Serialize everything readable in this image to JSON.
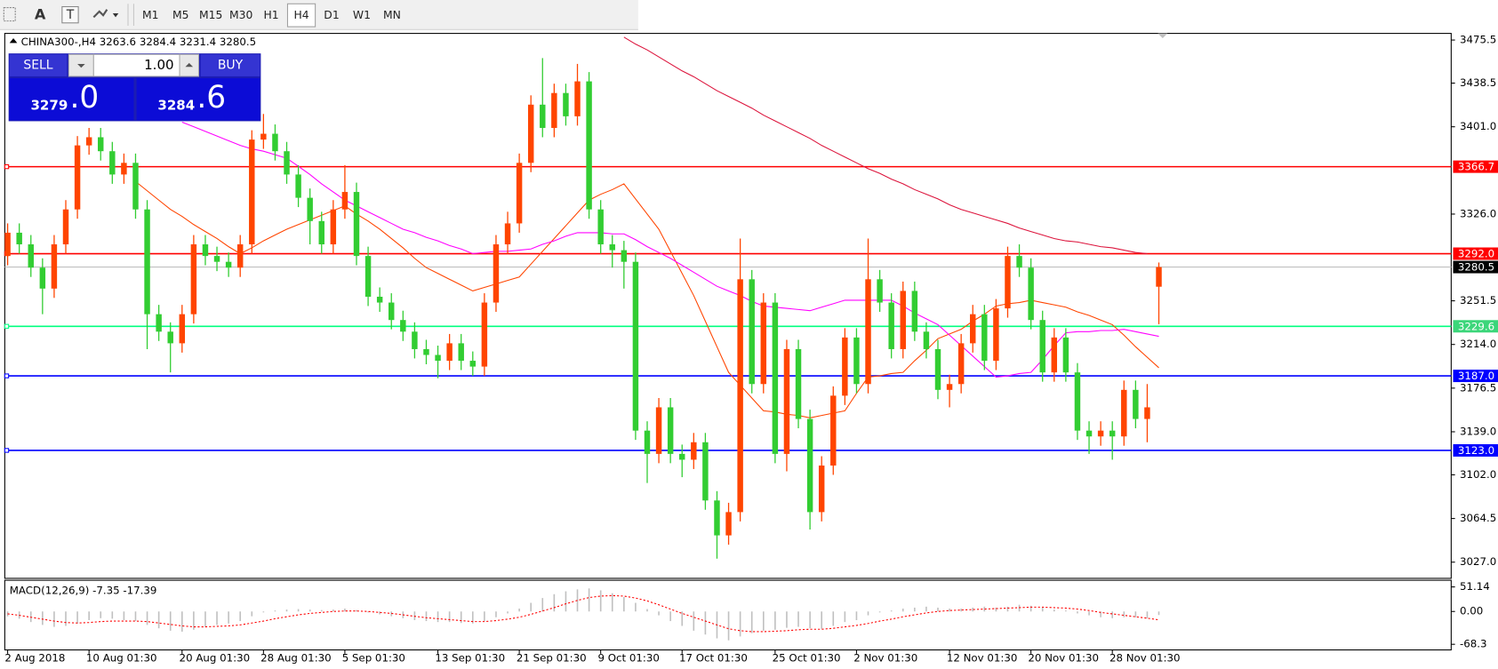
{
  "toolbar": {
    "text_tool": "A",
    "label_tool": "T",
    "timeframes": [
      "M1",
      "M5",
      "M15",
      "M30",
      "H1",
      "H4",
      "D1",
      "W1",
      "MN"
    ],
    "selected": "H4"
  },
  "trade_panel": {
    "sell": "SELL",
    "lot": "1.00",
    "buy": "BUY",
    "bid_small": "3279",
    "bid_big": ".0",
    "ask_small": "3284",
    "ask_big": ".6"
  },
  "chart_data": {
    "type": "candlestick",
    "title": "CHINA300-,H4  3263.6 3284.4 3231.4 3280.5",
    "categories": [
      "2 Aug 2018",
      null,
      null,
      null,
      null,
      null,
      null,
      "10 Aug 01:30",
      null,
      null,
      null,
      null,
      null,
      null,
      null,
      "20 Aug 01:30",
      null,
      null,
      null,
      null,
      null,
      null,
      "28 Aug 01:30",
      null,
      null,
      null,
      null,
      null,
      null,
      "5 Sep 01:30",
      null,
      null,
      null,
      null,
      null,
      null,
      null,
      "13 Sep 01:30",
      null,
      null,
      null,
      null,
      null,
      null,
      "21 Sep 01:30",
      null,
      null,
      null,
      null,
      null,
      null,
      "9 Oct 01:30",
      null,
      null,
      null,
      null,
      null,
      null,
      "17 Oct 01:30",
      null,
      null,
      null,
      null,
      null,
      null,
      null,
      "25 Oct 01:30",
      null,
      null,
      null,
      null,
      null,
      null,
      "2 Nov 01:30",
      null,
      null,
      null,
      null,
      null,
      null,
      null,
      "12 Nov 01:30",
      null,
      null,
      null,
      null,
      null,
      null,
      "20 Nov 01:30",
      null,
      null,
      null,
      null,
      null,
      null,
      "28 Nov 01:30",
      null,
      null,
      null,
      null
    ],
    "open": [
      3290,
      3310,
      3300,
      3280,
      3262,
      3300,
      3330,
      3385,
      3392,
      3380,
      3360,
      3370,
      3330,
      3240,
      3225,
      3215,
      3240,
      3300,
      3290,
      3285,
      3280,
      3300,
      3390,
      3395,
      3380,
      3360,
      3340,
      3320,
      3300,
      3330,
      3345,
      3290,
      3255,
      3250,
      3235,
      3225,
      3210,
      3205,
      3200,
      3215,
      3200,
      3195,
      3250,
      3300,
      3318,
      3370,
      3420,
      3400,
      3430,
      3410,
      3440,
      3330,
      3300,
      3295,
      3285,
      3140,
      3120,
      3160,
      3120,
      3115,
      3130,
      3080,
      3050,
      3070,
      3270,
      3180,
      3250,
      3120,
      3210,
      3150,
      3070,
      3110,
      3170,
      3220,
      3180,
      3270,
      3250,
      3210,
      3260,
      3225,
      3210,
      3175,
      3180,
      3215,
      3240,
      3200,
      3245,
      3290,
      3280,
      3235,
      3190,
      3220,
      3190,
      3140,
      3135,
      3140,
      3135,
      3175,
      3150,
      3263.6
    ],
    "high": [
      3318,
      3318,
      3308,
      3288,
      3308,
      3338,
      3393,
      3400,
      3400,
      3388,
      3378,
      3378,
      3338,
      3248,
      3233,
      3248,
      3308,
      3308,
      3298,
      3293,
      3308,
      3398,
      3412,
      3403,
      3388,
      3368,
      3348,
      3328,
      3338,
      3368,
      3353,
      3298,
      3263,
      3258,
      3243,
      3233,
      3218,
      3213,
      3223,
      3223,
      3208,
      3258,
      3308,
      3328,
      3378,
      3428,
      3460,
      3438,
      3438,
      3455,
      3448,
      3338,
      3308,
      3303,
      3293,
      3148,
      3168,
      3168,
      3128,
      3138,
      3138,
      3088,
      3078,
      3305,
      3278,
      3258,
      3258,
      3218,
      3218,
      3158,
      3118,
      3178,
      3228,
      3228,
      3305,
      3278,
      3258,
      3268,
      3268,
      3233,
      3218,
      3188,
      3223,
      3248,
      3248,
      3253,
      3298,
      3300,
      3288,
      3243,
      3228,
      3228,
      3198,
      3148,
      3148,
      3148,
      3183,
      3183,
      3180,
      3284.4
    ],
    "low": [
      3282,
      3292,
      3272,
      3240,
      3254,
      3292,
      3322,
      3377,
      3372,
      3352,
      3352,
      3322,
      3210,
      3217,
      3190,
      3207,
      3232,
      3282,
      3277,
      3272,
      3272,
      3292,
      3382,
      3372,
      3352,
      3332,
      3300,
      3292,
      3292,
      3322,
      3282,
      3247,
      3242,
      3227,
      3217,
      3202,
      3197,
      3185,
      3192,
      3192,
      3187,
      3187,
      3242,
      3292,
      3310,
      3362,
      3392,
      3392,
      3402,
      3402,
      3322,
      3292,
      3280,
      3262,
      3132,
      3095,
      3112,
      3112,
      3100,
      3107,
      3072,
      3030,
      3042,
      3062,
      3172,
      3172,
      3112,
      3105,
      3142,
      3055,
      3062,
      3102,
      3162,
      3172,
      3172,
      3242,
      3202,
      3202,
      3217,
      3202,
      3167,
      3160,
      3172,
      3207,
      3192,
      3192,
      3237,
      3272,
      3227,
      3182,
      3182,
      3182,
      3132,
      3120,
      3127,
      3115,
      3127,
      3142,
      3130,
      3231.4
    ],
    "close": [
      3310,
      3300,
      3280,
      3262,
      3300,
      3330,
      3385,
      3392,
      3380,
      3360,
      3370,
      3330,
      3240,
      3225,
      3215,
      3240,
      3300,
      3290,
      3285,
      3280,
      3300,
      3390,
      3395,
      3380,
      3360,
      3340,
      3320,
      3300,
      3330,
      3345,
      3290,
      3255,
      3250,
      3235,
      3225,
      3210,
      3205,
      3200,
      3215,
      3200,
      3195,
      3250,
      3300,
      3318,
      3370,
      3420,
      3400,
      3430,
      3410,
      3440,
      3330,
      3300,
      3295,
      3285,
      3140,
      3120,
      3160,
      3120,
      3115,
      3130,
      3080,
      3050,
      3070,
      3270,
      3180,
      3250,
      3120,
      3210,
      3150,
      3070,
      3110,
      3170,
      3220,
      3180,
      3270,
      3250,
      3210,
      3260,
      3225,
      3210,
      3175,
      3180,
      3215,
      3240,
      3200,
      3245,
      3290,
      3280,
      3235,
      3190,
      3220,
      3190,
      3140,
      3135,
      3140,
      3135,
      3175,
      3150,
      3160,
      3280.5
    ],
    "up_color": "#ff4500",
    "down_color": "#32cd32",
    "series": [
      {
        "color": "#ff4500",
        "values": [
          null,
          null,
          null,
          null,
          null,
          null,
          null,
          null,
          null,
          null,
          null,
          3354,
          3346,
          3338,
          3330,
          3324,
          3317,
          3311,
          3305,
          3298,
          3292,
          3297,
          3303,
          3308,
          3313,
          3317,
          3321,
          3325,
          3329,
          3333,
          3326,
          3320,
          3313,
          3305,
          3297,
          3288,
          3280,
          3275,
          3270,
          3265,
          3260,
          3263,
          3266,
          3269,
          3272,
          3283,
          3294,
          3305,
          3316,
          3327,
          3338,
          3343,
          3347,
          3352,
          3339,
          3326,
          3313,
          3294,
          3275,
          3256,
          3234,
          3212,
          3190,
          3179,
          3168,
          3157,
          3156,
          3154,
          3153,
          3151,
          3153,
          3155,
          3157,
          3172,
          3186,
          3187,
          3189,
          3190,
          3200,
          3209,
          3219,
          3223,
          3227,
          3234,
          3240,
          3247,
          3249,
          3250,
          3252,
          3250,
          3248,
          3246,
          3242,
          3239,
          3235,
          3231,
          3222,
          3212,
          3203,
          3194
        ]
      },
      {
        "color": "#ff00ff",
        "values": [
          null,
          null,
          null,
          null,
          null,
          null,
          null,
          null,
          null,
          null,
          null,
          null,
          null,
          null,
          null,
          3405,
          3401,
          3397,
          3393,
          3389,
          3385,
          3382,
          3380,
          3377,
          3374,
          3367,
          3360,
          3352,
          3345,
          3338,
          3333,
          3328,
          3323,
          3318,
          3313,
          3310,
          3306,
          3303,
          3299,
          3296,
          3292,
          3293,
          3294,
          3294,
          3295,
          3296,
          3300,
          3303,
          3307,
          3310,
          3310,
          3310,
          3309,
          3309,
          3304,
          3298,
          3293,
          3288,
          3282,
          3276,
          3270,
          3264,
          3260,
          3256,
          3251,
          3247,
          3246,
          3245,
          3244,
          3243,
          3246,
          3249,
          3252,
          3252,
          3252,
          3252,
          3252,
          3247,
          3241,
          3236,
          3231,
          3222,
          3213,
          3204,
          3195,
          3186,
          3187,
          3189,
          3190,
          3201,
          3213,
          3224,
          3225,
          3225,
          3226,
          3226,
          3227,
          3225,
          3223,
          3221
        ]
      },
      {
        "color": "#dc143c",
        "values": [
          null,
          null,
          null,
          null,
          null,
          null,
          null,
          null,
          null,
          null,
          null,
          null,
          null,
          null,
          null,
          null,
          null,
          null,
          null,
          null,
          null,
          null,
          null,
          null,
          null,
          null,
          null,
          null,
          null,
          null,
          null,
          null,
          null,
          null,
          null,
          null,
          null,
          null,
          null,
          null,
          null,
          null,
          null,
          null,
          null,
          null,
          null,
          null,
          null,
          null,
          null,
          null,
          null,
          3478,
          3472,
          3467,
          3461,
          3455,
          3449,
          3444,
          3438,
          3432,
          3427,
          3422,
          3417,
          3411,
          3406,
          3401,
          3396,
          3391,
          3385,
          3380,
          3375,
          3370,
          3365,
          3361,
          3356,
          3352,
          3347,
          3343,
          3339,
          3334,
          3330,
          3327,
          3324,
          3321,
          3318,
          3314,
          3311,
          3308,
          3305,
          3303,
          3302,
          3300,
          3298,
          3297,
          3295,
          3293,
          3292,
          null
        ]
      }
    ],
    "ylim": [
      3013.1,
      3481.2
    ],
    "yticks": [
      3475.5,
      3438.5,
      {
        "value": 3401,
        "label": "3401.0"
      },
      {
        "value": 3326,
        "label": "3326.0"
      },
      3251.5,
      {
        "value": 3214,
        "label": "3214.0"
      },
      3176.5,
      {
        "value": 3139,
        "label": "3139.0"
      },
      {
        "value": 3102,
        "label": "3102.0"
      },
      3064.5,
      {
        "value": 3027,
        "label": "3027.0"
      }
    ],
    "levels": [
      {
        "value": 3366.7,
        "color": "#ff0000",
        "label_color": "#ff0000"
      },
      {
        "value": 3292,
        "label": "3292.0",
        "color": "#ff0000",
        "label_color": "#ff0000"
      },
      {
        "value": 3280.5,
        "color": "#c0c0c0",
        "label_color": "#000000"
      },
      {
        "value": 3229.6,
        "color": "#00ff7f",
        "label_color": "#3cd67a"
      },
      {
        "value": 3187,
        "label": "3187.0",
        "color": "#0000ff",
        "label_color": "#0000ff"
      },
      {
        "value": 3123,
        "label": "3123.0",
        "color": "#0000ff",
        "label_color": "#0000ff"
      }
    ],
    "macd": {
      "label": "MACD(12,26,9) -7.35 -17.39",
      "bar_color": "#c0c0c0",
      "signal_color": "#ff0000",
      "ylim": [
        -80,
        65
      ],
      "yticks": [
        51.14,
        {
          "value": 0,
          "label": "0.00"
        },
        -68.3
      ],
      "values": [
        -10,
        -15,
        -22,
        -28,
        -32,
        -30,
        -25,
        -18,
        -14,
        -15,
        -18,
        -20,
        -28,
        -35,
        -40,
        -42,
        -38,
        -32,
        -28,
        -25,
        -20,
        -10,
        -2,
        2,
        4,
        5,
        4,
        3,
        4,
        6,
        3,
        -2,
        -6,
        -10,
        -14,
        -18,
        -20,
        -22,
        -22,
        -24,
        -25,
        -20,
        -12,
        -4,
        6,
        18,
        28,
        36,
        42,
        46,
        48,
        44,
        38,
        30,
        18,
        5,
        -8,
        -20,
        -30,
        -40,
        -48,
        -56,
        -60,
        -52,
        -45,
        -40,
        -38,
        -34,
        -32,
        -35,
        -36,
        -30,
        -22,
        -18,
        -8,
        -2,
        2,
        6,
        8,
        10,
        8,
        6,
        6,
        8,
        10,
        8,
        10,
        14,
        12,
        8,
        4,
        2,
        -4,
        -8,
        -12,
        -14,
        -12,
        -12,
        -14,
        -7.35
      ],
      "signal": [
        -5,
        -8,
        -12,
        -16,
        -20,
        -23,
        -24,
        -23,
        -21,
        -20,
        -20,
        -20,
        -21,
        -24,
        -27,
        -30,
        -32,
        -32,
        -31,
        -30,
        -28,
        -24,
        -20,
        -15,
        -11,
        -7,
        -4,
        -2,
        0,
        1,
        1,
        0,
        -2,
        -4,
        -7,
        -10,
        -13,
        -15,
        -17,
        -19,
        -21,
        -21,
        -19,
        -16,
        -12,
        -6,
        1,
        8,
        16,
        23,
        29,
        32,
        33,
        32,
        28,
        22,
        14,
        5,
        -4,
        -12,
        -20,
        -28,
        -36,
        -40,
        -42,
        -42,
        -41,
        -40,
        -38,
        -37,
        -37,
        -35,
        -32,
        -29,
        -25,
        -20,
        -16,
        -11,
        -7,
        -3,
        0,
        2,
        3,
        4,
        5,
        6,
        7,
        8,
        9,
        9,
        8,
        7,
        5,
        2,
        -2,
        -5,
        -8,
        -11,
        -14,
        -17.39
      ]
    }
  }
}
